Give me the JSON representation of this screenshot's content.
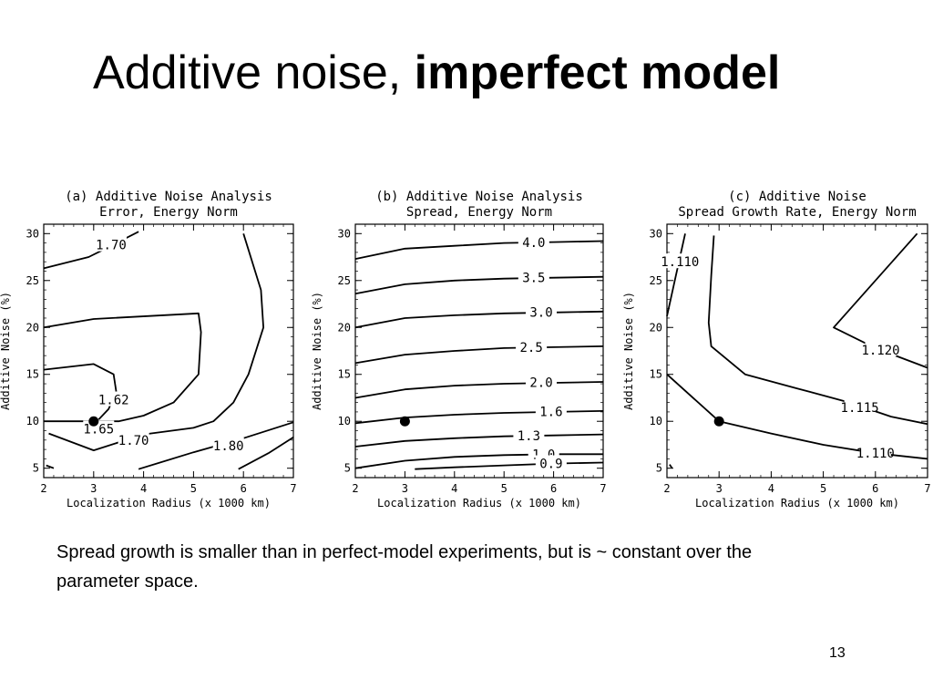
{
  "slide": {
    "title_regular": "Additive noise, ",
    "title_bold": "imperfect model",
    "caption": "Spread growth is smaller than in  perfect-model experiments, but is ~ constant over the parameter space.",
    "page_number": "13"
  },
  "chart_data": [
    {
      "type": "contour",
      "title": "(a) Additive Noise Analysis",
      "subtitle": "Error, Energy Norm",
      "xlabel": "Localization Radius (x 1000 km)",
      "ylabel": "Additive Noise (%)",
      "xlim": [
        2,
        7
      ],
      "ylim": [
        4,
        31
      ],
      "xticks": [
        2,
        3,
        4,
        5,
        6,
        7
      ],
      "yticks": [
        5,
        10,
        15,
        20,
        25,
        30
      ],
      "marker": {
        "x": 3,
        "y": 10
      },
      "contours": [
        {
          "level": "1.70",
          "points": [
            [
              2,
              26.3
            ],
            [
              2.9,
              27.5
            ],
            [
              3.2,
              28.3
            ],
            [
              3.9,
              30.2
            ]
          ],
          "label_at": [
            3.35,
            28.8
          ]
        },
        {
          "level": "1.62",
          "points": [
            [
              2,
              15.5
            ],
            [
              3.0,
              16.1
            ],
            [
              3.4,
              15.0
            ],
            [
              3.45,
              13.2
            ],
            [
              3.3,
              11.3
            ],
            [
              3.1,
              10.2
            ]
          ],
          "label_at": [
            3.4,
            12.3
          ]
        },
        {
          "level": "1.65",
          "points": [
            [
              2,
              20.0
            ],
            [
              3.0,
              20.9
            ],
            [
              5.1,
              21.5
            ],
            [
              5.15,
              19.5
            ],
            [
              5.1,
              15.0
            ],
            [
              4.6,
              12.0
            ],
            [
              4.0,
              10.6
            ],
            [
              3.5,
              10.0
            ],
            [
              2,
              10.0
            ]
          ],
          "label_at": [
            3.1,
            9.2
          ]
        },
        {
          "level": "1.70",
          "points": [
            [
              2.1,
              8.7
            ],
            [
              3.0,
              6.9
            ],
            [
              4.0,
              8.6
            ],
            [
              5.0,
              9.3
            ],
            [
              5.4,
              10.0
            ],
            [
              5.8,
              12.0
            ],
            [
              6.1,
              15.0
            ],
            [
              6.4,
              20.0
            ],
            [
              6.35,
              24.0
            ],
            [
              6.0,
              30.0
            ]
          ],
          "label_at": [
            3.8,
            8.0
          ]
        },
        {
          "level": "1.80",
          "points": [
            [
              3.9,
              4.9
            ],
            [
              5.0,
              6.7
            ],
            [
              6.0,
              8.2
            ],
            [
              7.0,
              9.9
            ]
          ],
          "label_at": [
            5.7,
            7.4
          ]
        },
        {
          "level": "",
          "points": [
            [
              5.9,
              4.9
            ],
            [
              6.5,
              6.6
            ],
            [
              7.0,
              8.3
            ]
          ],
          "label_at": null
        },
        {
          "level": "",
          "points": [
            [
              2.05,
              5.3
            ],
            [
              2.2,
              5.0
            ]
          ],
          "label_at": null
        }
      ]
    },
    {
      "type": "contour",
      "title": "(b) Additive Noise Analysis",
      "subtitle": "Spread, Energy Norm",
      "xlabel": "Localization Radius (x 1000 km)",
      "ylabel": "Additive Noise (%)",
      "xlim": [
        2,
        7
      ],
      "ylim": [
        4,
        31
      ],
      "xticks": [
        2,
        3,
        4,
        5,
        6,
        7
      ],
      "yticks": [
        5,
        10,
        15,
        20,
        25,
        30
      ],
      "marker": {
        "x": 3,
        "y": 10
      },
      "contours": [
        {
          "level": "4.0",
          "points": [
            [
              2,
              27.3
            ],
            [
              3,
              28.4
            ],
            [
              4,
              28.7
            ],
            [
              5,
              29.0
            ],
            [
              6,
              29.1
            ],
            [
              7,
              29.2
            ]
          ],
          "label_at": [
            5.6,
            29.05
          ]
        },
        {
          "level": "3.5",
          "points": [
            [
              2,
              23.6
            ],
            [
              3,
              24.6
            ],
            [
              4,
              25.0
            ],
            [
              5,
              25.2
            ],
            [
              6,
              25.3
            ],
            [
              7,
              25.4
            ]
          ],
          "label_at": [
            5.6,
            25.3
          ]
        },
        {
          "level": "3.0",
          "points": [
            [
              2,
              20.0
            ],
            [
              3,
              21.0
            ],
            [
              4,
              21.3
            ],
            [
              5,
              21.5
            ],
            [
              6,
              21.6
            ],
            [
              7,
              21.7
            ]
          ],
          "label_at": [
            5.75,
            21.65
          ]
        },
        {
          "level": "2.5",
          "points": [
            [
              2,
              16.2
            ],
            [
              3,
              17.1
            ],
            [
              4,
              17.5
            ],
            [
              5,
              17.8
            ],
            [
              6,
              17.9
            ],
            [
              7,
              18.0
            ]
          ],
          "label_at": [
            5.55,
            17.9
          ]
        },
        {
          "level": "2.0",
          "points": [
            [
              2,
              12.5
            ],
            [
              3,
              13.4
            ],
            [
              4,
              13.8
            ],
            [
              5,
              14.0
            ],
            [
              6,
              14.1
            ],
            [
              7,
              14.2
            ]
          ],
          "label_at": [
            5.75,
            14.15
          ]
        },
        {
          "level": "1.6",
          "points": [
            [
              2,
              9.8
            ],
            [
              3,
              10.4
            ],
            [
              4,
              10.7
            ],
            [
              5,
              10.9
            ],
            [
              6,
              11.0
            ],
            [
              7,
              11.1
            ]
          ],
          "label_at": [
            5.95,
            11.05
          ]
        },
        {
          "level": "1.3",
          "points": [
            [
              2,
              7.3
            ],
            [
              3,
              7.9
            ],
            [
              4,
              8.2
            ],
            [
              5,
              8.4
            ],
            [
              6,
              8.5
            ],
            [
              7,
              8.6
            ]
          ],
          "label_at": [
            5.5,
            8.45
          ]
        },
        {
          "level": "1.0",
          "points": [
            [
              2,
              5.0
            ],
            [
              3,
              5.8
            ],
            [
              4,
              6.2
            ],
            [
              5,
              6.4
            ],
            [
              6,
              6.5
            ],
            [
              7,
              6.5
            ]
          ],
          "label_at": [
            5.8,
            6.5
          ]
        },
        {
          "level": "0.9",
          "points": [
            [
              3.2,
              4.9
            ],
            [
              4,
              5.1
            ],
            [
              5,
              5.3
            ],
            [
              6,
              5.5
            ],
            [
              7,
              5.6
            ]
          ],
          "label_at": [
            5.95,
            5.5
          ]
        }
      ]
    },
    {
      "type": "contour",
      "title": "(c) Additive Noise",
      "subtitle": "Spread Growth Rate, Energy Norm",
      "xlabel": "Localization Radius (x 1000 km)",
      "ylabel": "Additive Noise (%)",
      "xlim": [
        2,
        7
      ],
      "ylim": [
        4,
        31
      ],
      "xticks": [
        2,
        3,
        4,
        5,
        6,
        7
      ],
      "yticks": [
        5,
        10,
        15,
        20,
        25,
        30
      ],
      "marker": {
        "x": 3,
        "y": 10
      },
      "contours": [
        {
          "level": "1.110",
          "points": [
            [
              2,
              21.2
            ],
            [
              2.15,
              25.0
            ],
            [
              2.35,
              30.0
            ]
          ],
          "label_at": [
            2.25,
            27.0
          ]
        },
        {
          "level": "1.115",
          "points": [
            [
              2.9,
              29.8
            ],
            [
              2.85,
              25.5
            ],
            [
              2.8,
              20.5
            ],
            [
              2.85,
              18.0
            ],
            [
              3.5,
              15.0
            ],
            [
              4.5,
              13.5
            ],
            [
              5.5,
              12.0
            ],
            [
              6.3,
              10.5
            ],
            [
              7.0,
              9.7
            ]
          ],
          "label_at": [
            5.7,
            11.5
          ]
        },
        {
          "level": "1.120",
          "points": [
            [
              6.8,
              30.0
            ],
            [
              5.2,
              20.0
            ],
            [
              6.0,
              17.8
            ],
            [
              7.0,
              15.7
            ]
          ],
          "label_at": [
            6.1,
            17.6
          ]
        },
        {
          "level": "1.110",
          "points": [
            [
              2,
              15.0
            ],
            [
              3,
              10.0
            ],
            [
              4,
              8.7
            ],
            [
              5,
              7.5
            ],
            [
              6,
              6.6
            ],
            [
              7,
              6.0
            ]
          ],
          "label_at": [
            6.0,
            6.6
          ]
        },
        {
          "level": "",
          "points": [
            [
              2.1,
              5.0
            ],
            [
              2.05,
              5.4
            ]
          ],
          "label_at": null
        }
      ]
    }
  ]
}
